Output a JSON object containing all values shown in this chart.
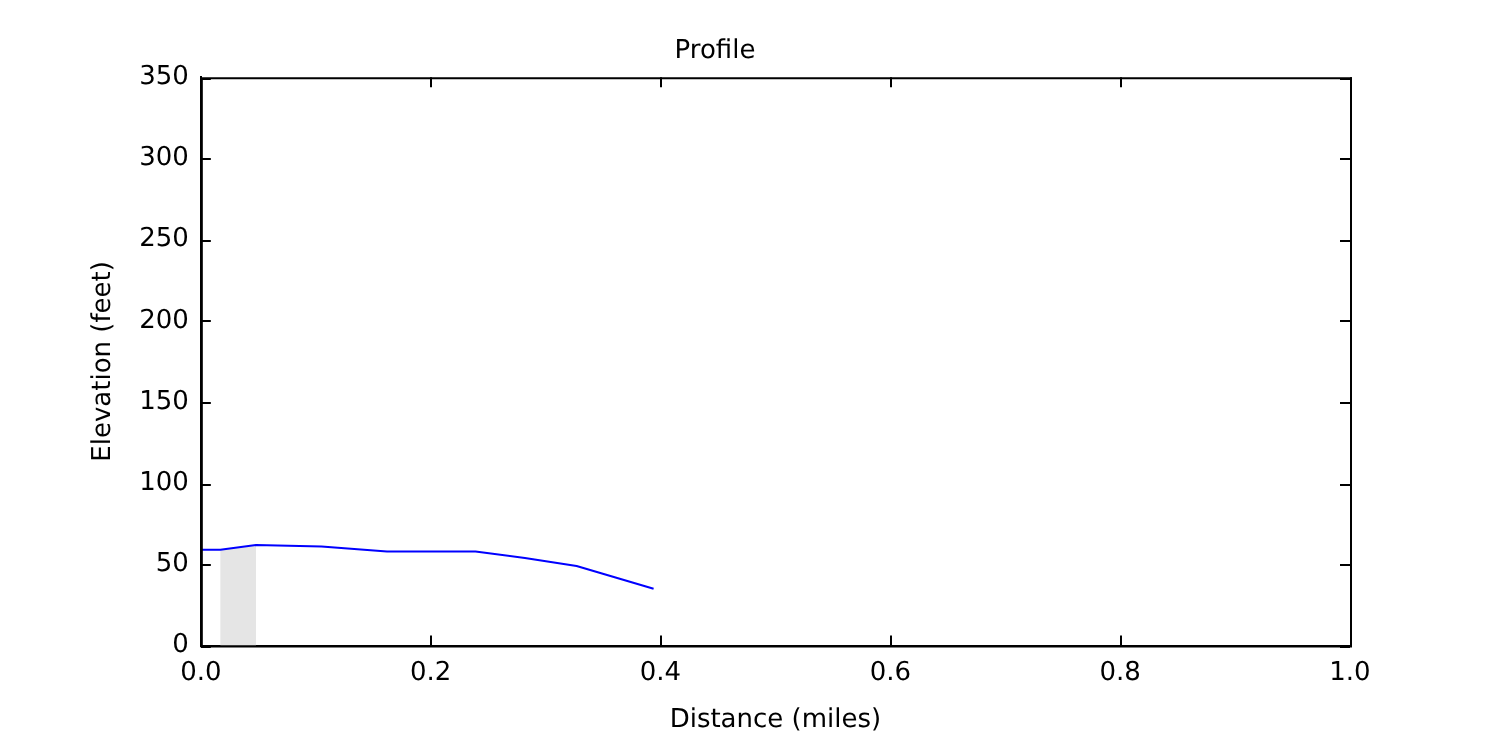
{
  "chart_data": {
    "type": "line",
    "title": "Profile",
    "xlabel": "Distance (miles)",
    "ylabel": "Elevation (feet)",
    "x": [
      0,
      0.017,
      0.048,
      0.105,
      0.162,
      0.239,
      0.282,
      0.327,
      0.394
    ],
    "series": [
      {
        "color": "#0000ff",
        "values": [
          59,
          59,
          62,
          61,
          58,
          58,
          54,
          49,
          35
        ]
      }
    ],
    "xlim": [
      0,
      1
    ],
    "xticks": [
      {
        "value": 0,
        "label": "0.0"
      },
      0.2,
      0.4,
      0.6,
      0.8,
      {
        "value": 1,
        "label": "1.0"
      }
    ],
    "ylim": [
      0,
      350
    ],
    "yticks": [
      0,
      50,
      100,
      150,
      200,
      250,
      300,
      350
    ],
    "bands": [
      {
        "axis": "x",
        "from": 0.017,
        "to": 0.048,
        "color": "#e5e5e5"
      }
    ],
    "grid": false,
    "legend": false,
    "marker": "none",
    "line_style": "solid"
  }
}
